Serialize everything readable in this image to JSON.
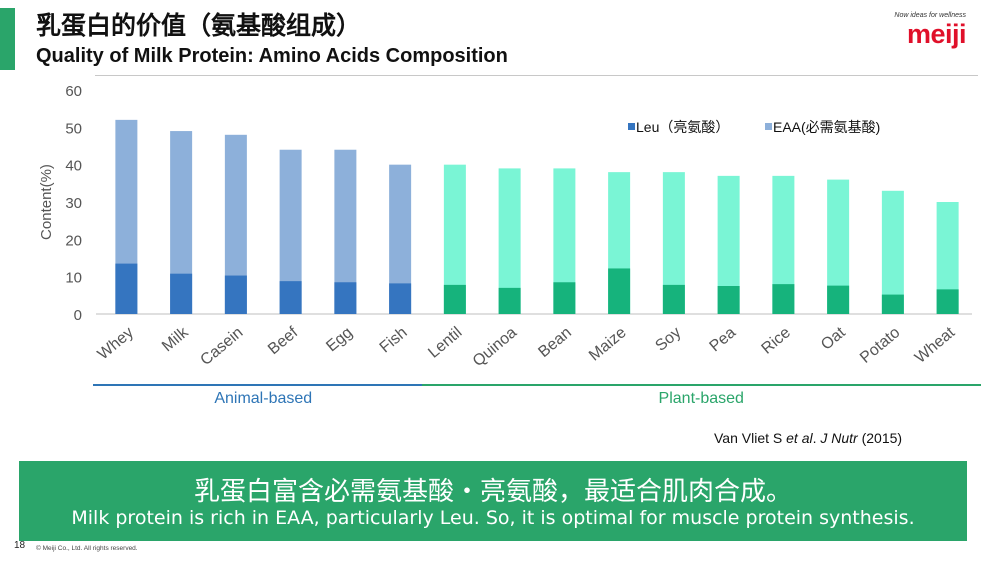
{
  "header": {
    "title_cn": "乳蛋白的价值（氨基酸组成）",
    "title_en": "Quality of Milk Protein: Amino Acids Composition"
  },
  "logo": {
    "tagline": "Now ideas for wellness",
    "word": "meiji",
    "color": "#e0102a"
  },
  "colors": {
    "accent": "#2aa56a",
    "animal_leu": "#3575c0",
    "animal_eaa": "#8db0da",
    "plant_leu": "#16b37c",
    "plant_eaa": "#7af5d5",
    "animal_line": "#2e75b6",
    "plant_line": "#2aa56a"
  },
  "groups": {
    "animal": {
      "label": "Animal-based",
      "color": "#2e75b6"
    },
    "plant": {
      "label": "Plant-based",
      "color": "#2aa56a"
    }
  },
  "citation": {
    "author": "Van Vliet S ",
    "etal": "et al",
    "journal_prefix": ". ",
    "journal": "J Nutr",
    "year": " (2015)"
  },
  "conclusion": {
    "cn": "乳蛋白富含必需氨基酸・亮氨酸，最适合肌肉合成。",
    "en": "Milk protein is rich in EAA, particularly Leu. So, it is optimal for muscle protein synthesis."
  },
  "footer": {
    "page_number": "18",
    "copyright": "© Meiji Co., Ltd. All rights reserved."
  },
  "chart_data": {
    "type": "bar",
    "stacked": false,
    "categories": [
      "Whey",
      "Milk",
      "Casein",
      "Beef",
      "Egg",
      "Fish",
      "Lentil",
      "Quinoa",
      "Bean",
      "Maize",
      "Soy",
      "Pea",
      "Rice",
      "Oat",
      "Potato",
      "Wheat"
    ],
    "category_groups": [
      "animal",
      "animal",
      "animal",
      "animal",
      "animal",
      "animal",
      "plant",
      "plant",
      "plant",
      "plant",
      "plant",
      "plant",
      "plant",
      "plant",
      "plant",
      "plant"
    ],
    "series": [
      {
        "name": "EAA(必需氨基酸)",
        "values": [
          52,
          49,
          48,
          44,
          44,
          40,
          40,
          39,
          39,
          38,
          38,
          37,
          37,
          36,
          33,
          30
        ]
      },
      {
        "name": "Leu（亮氨酸）",
        "values": [
          13.5,
          10.8,
          10.3,
          8.8,
          8.5,
          8.2,
          7.8,
          7.0,
          8.5,
          12.2,
          7.8,
          7.5,
          8.0,
          7.6,
          5.2,
          6.6
        ]
      }
    ],
    "ylabel": "Content(%)",
    "xlabel": "",
    "ylim": [
      0,
      60
    ],
    "yticks": [
      0,
      10,
      20,
      30,
      40,
      50,
      60
    ],
    "grid": false,
    "legend_position": "top-right"
  }
}
